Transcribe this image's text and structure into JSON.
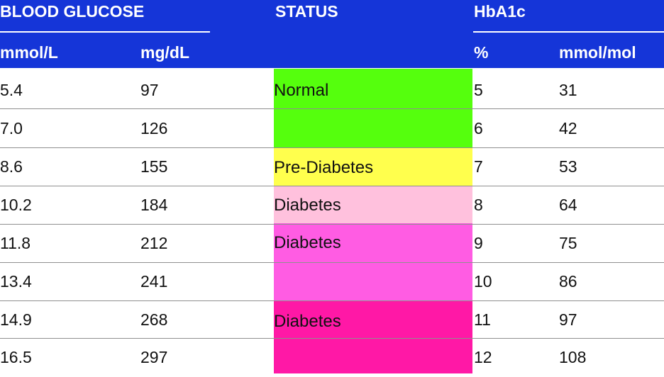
{
  "header": {
    "blood_glucose": "BLOOD GLUCOSE",
    "status": "STATUS",
    "hba1c": "HbA1c",
    "mmol_l": "mmol/L",
    "mg_dl": "mg/dL",
    "percent": "%",
    "mmol_mol": "mmol/mol"
  },
  "rows": [
    {
      "mmol_l": "5.4",
      "mg_dl": "97",
      "hba1c_percent": "5",
      "hba1c_mmol_mol": "31"
    },
    {
      "mmol_l": "7.0",
      "mg_dl": "126",
      "hba1c_percent": "6",
      "hba1c_mmol_mol": "42"
    },
    {
      "mmol_l": "8.6",
      "mg_dl": "155",
      "hba1c_percent": "7",
      "hba1c_mmol_mol": "53"
    },
    {
      "mmol_l": "10.2",
      "mg_dl": "184",
      "hba1c_percent": "8",
      "hba1c_mmol_mol": "64"
    },
    {
      "mmol_l": "11.8",
      "mg_dl": "212",
      "hba1c_percent": "9",
      "hba1c_mmol_mol": "75"
    },
    {
      "mmol_l": "13.4",
      "mg_dl": "241",
      "hba1c_percent": "10",
      "hba1c_mmol_mol": "86"
    },
    {
      "mmol_l": "14.9",
      "mg_dl": "268",
      "hba1c_percent": "11",
      "hba1c_mmol_mol": "97"
    },
    {
      "mmol_l": "16.5",
      "mg_dl": "297",
      "hba1c_percent": "12",
      "hba1c_mmol_mol": "108"
    }
  ],
  "status_groups": [
    {
      "label": "Normal",
      "color": "#55ff0d"
    },
    {
      "label": "Pre-Diabetes",
      "color": "#ffff4d"
    },
    {
      "label": "Diabetes",
      "color": "#ffc1dd"
    },
    {
      "label": "Diabetes",
      "color": "#ff5ce3"
    },
    {
      "label": "Diabetes",
      "color": "#ff18a6"
    }
  ],
  "colors": {
    "header_blue": "#1535d8",
    "rule_gray": "#8f8f8f",
    "text": "#111111"
  }
}
